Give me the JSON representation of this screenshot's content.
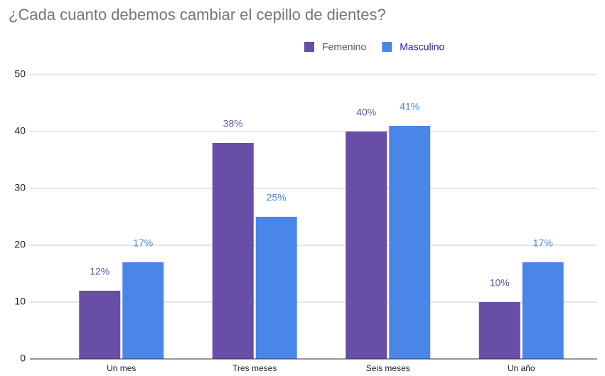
{
  "chart_data": {
    "type": "bar",
    "title": "¿Cada cuanto debemos cambiar el cepillo de dientes?",
    "categories": [
      "Un mes",
      "Tres meses",
      "Seis meses",
      "Un año"
    ],
    "series": [
      {
        "name": "Femenino",
        "color": "#674ea7",
        "values": [
          12,
          38,
          40,
          10
        ],
        "value_labels": [
          "12%",
          "38%",
          "40%",
          "10%"
        ]
      },
      {
        "name": "Masculino",
        "color": "#4a86e8",
        "values": [
          17,
          25,
          41,
          17
        ],
        "value_labels": [
          "17%",
          "25%",
          "41%",
          "17%"
        ]
      }
    ],
    "ylim": [
      0,
      50
    ],
    "yticks": [
      0,
      10,
      20,
      30,
      40,
      50
    ],
    "grid": true,
    "legend": "top"
  }
}
